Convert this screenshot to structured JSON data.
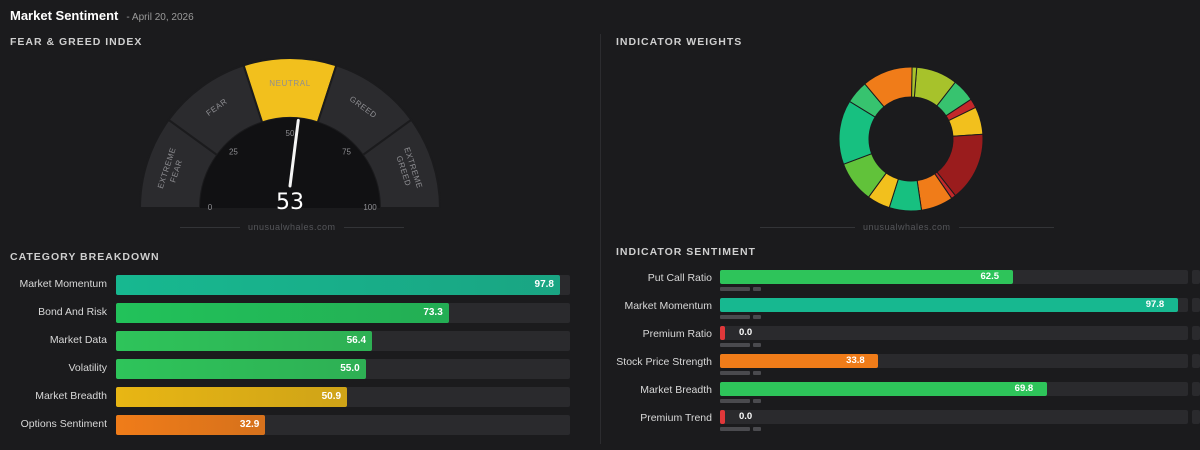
{
  "header": {
    "title": "Market Sentiment",
    "date": "- April 20, 2026"
  },
  "fear_greed": {
    "section_title": "FEAR & GREED INDEX",
    "value": 53,
    "value_text": "53",
    "segments": [
      "EXTREME FEAR",
      "FEAR",
      "NEUTRAL",
      "GREED",
      "EXTREME GREED"
    ],
    "active_segment": "NEUTRAL",
    "ticks": [
      "0",
      "25",
      "50",
      "75",
      "100"
    ],
    "watermark": "unusualwhales.com",
    "colors": {
      "active": "#f2c01d",
      "segment": "#2b2b2e",
      "dial": "#111113"
    }
  },
  "weights": {
    "section_title": "INDICATOR WEIGHTS",
    "watermark": "unusualwhales.com",
    "slices": [
      {
        "color": "#a7c22b",
        "value": 9
      },
      {
        "color": "#37c36f",
        "value": 5
      },
      {
        "color": "#c3282a",
        "value": 2
      },
      {
        "color": "#f2c01d",
        "value": 6
      },
      {
        "color": "#9a1c1d",
        "value": 15
      },
      {
        "color": "#c3282a",
        "value": 1
      },
      {
        "color": "#f07c19",
        "value": 7
      },
      {
        "color": "#17c080",
        "value": 7
      },
      {
        "color": "#f2c01d",
        "value": 5
      },
      {
        "color": "#61c23a",
        "value": 9
      },
      {
        "color": "#17c080",
        "value": 14
      },
      {
        "color": "#37c36f",
        "value": 5
      },
      {
        "color": "#f07c19",
        "value": 11
      },
      {
        "color": "#a7c22b",
        "value": 1
      }
    ]
  },
  "category": {
    "section_title": "CATEGORY BREAKDOWN",
    "rows": [
      {
        "label": "Market Momentum",
        "value": 97.8,
        "value_text": "97.8",
        "color": "#17b890"
      },
      {
        "label": "Bond And Risk",
        "value": 73.3,
        "value_text": "73.3",
        "color": "#22c25a"
      },
      {
        "label": "Market Data",
        "value": 56.4,
        "value_text": "56.4",
        "color": "#2ec45a"
      },
      {
        "label": "Volatility",
        "value": 55.0,
        "value_text": "55.0",
        "color": "#2ec45a"
      },
      {
        "label": "Market Breadth",
        "value": 50.9,
        "value_text": "50.9",
        "color": "#e8b614"
      },
      {
        "label": "Options Sentiment",
        "value": 32.9,
        "value_text": "32.9",
        "color": "#f07c19"
      }
    ]
  },
  "sentiment": {
    "section_title": "INDICATOR SENTIMENT",
    "rows": [
      {
        "label": "Put Call Ratio",
        "value": 62.5,
        "value_text": "62.5",
        "color": "#2ec45a"
      },
      {
        "label": "Market Momentum",
        "value": 97.8,
        "value_text": "97.8",
        "color": "#17b890"
      },
      {
        "label": "Premium Ratio",
        "value": 0.0,
        "value_text": "0.0",
        "color": "#e0383a"
      },
      {
        "label": "Stock Price Strength",
        "value": 33.8,
        "value_text": "33.8",
        "color": "#f07c19"
      },
      {
        "label": "Market Breadth",
        "value": 69.8,
        "value_text": "69.8",
        "color": "#2ec45a"
      },
      {
        "label": "Premium Trend",
        "value": 0.0,
        "value_text": "0.0",
        "color": "#e0383a"
      }
    ]
  }
}
